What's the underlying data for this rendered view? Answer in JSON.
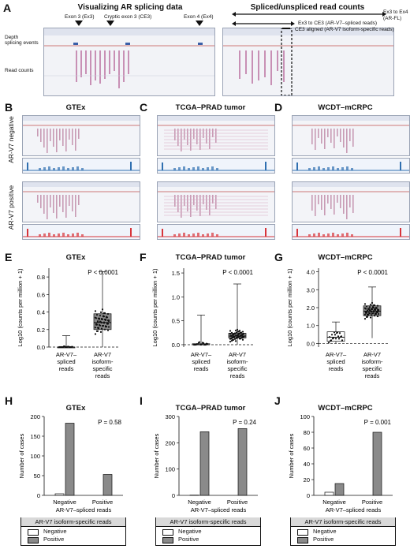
{
  "panelA": {
    "letter": "A",
    "left_title": "Visualizing AR splicing data",
    "right_title": "Spliced/unspliced read counts",
    "exon3": "Exon 3 (Ex3)",
    "cryptic": "Cryptic exon 3 (CE3)",
    "exon4": "Exon 4 (Ex4)",
    "depth_label": "Depth",
    "splicing_label": "splicing events",
    "read_counts": "Read counts",
    "ex3_ex4": "Ex3 to Ex4",
    "arfl": "(AR-FL)",
    "ex3_ce3": "Ex3 to CE3 (AR-V7–spliced reads)",
    "ce3_aligned": "CE3 aligned (AR-V7 isoform-specific reads)"
  },
  "rows": {
    "negative": "AR-V7 negative",
    "positive": "AR-V7 positive"
  },
  "panels": [
    {
      "letter": "B",
      "title": "GTEx"
    },
    {
      "letter": "C",
      "title": "TCGA–PRAD tumor"
    },
    {
      "letter": "D",
      "title": "WCDT–mCRPC"
    }
  ],
  "box_panels": [
    {
      "letter": "E",
      "title": "GTEx",
      "p": "P < 0.0001",
      "ylabel": "Log10 (counts per million + 1)",
      "ticks": [
        "0.0",
        "0.2",
        "0.4",
        "0.6",
        "0.8"
      ],
      "ylim": [
        0,
        0.9
      ],
      "groups": [
        {
          "name": "AR-V7–spliced reads",
          "median": 0.0,
          "q1": 0.0,
          "q3": 0.0,
          "min": 0.0,
          "max": 0.13
        },
        {
          "name": "AR-V7 isoform-specific reads",
          "median": 0.28,
          "q1": 0.2,
          "q3": 0.38,
          "min": 0.0,
          "max": 0.86
        }
      ]
    },
    {
      "letter": "F",
      "title": "TCGA–PRAD tumor",
      "p": "P < 0.0001",
      "ylabel": "Log10 (counts per million + 1)",
      "ticks": [
        "0.0",
        "0.5",
        "1.0",
        "1.5"
      ],
      "ylim": [
        -0.05,
        1.6
      ],
      "groups": [
        {
          "name": "AR-V7–spliced reads",
          "median": 0.0,
          "q1": 0.0,
          "q3": 0.02,
          "min": 0.0,
          "max": 0.62
        },
        {
          "name": "AR-V7 isoform-specific reads",
          "median": 0.18,
          "q1": 0.14,
          "q3": 0.24,
          "min": 0.0,
          "max": 1.27
        }
      ]
    },
    {
      "letter": "G",
      "title": "WCDT–mCRPC",
      "p": "P < 0.0001",
      "ylabel": "Log10 (counts per million + 1)",
      "ticks": [
        "0.0",
        "1.0",
        "2.0",
        "3.0",
        "4.0"
      ],
      "ylim": [
        -0.2,
        4.2
      ],
      "groups": [
        {
          "name": "AR-V7–spliced reads",
          "median": 0.35,
          "q1": 0.12,
          "q3": 0.65,
          "min": 0.0,
          "max": 1.2
        },
        {
          "name": "AR-V7 isoform-specific reads",
          "median": 1.8,
          "q1": 1.55,
          "q3": 2.1,
          "min": 0.3,
          "max": 3.15
        }
      ]
    }
  ],
  "group_labels": [
    "AR-V7–",
    "spliced",
    "reads",
    "AR-V7",
    "isoform-",
    "specific",
    "reads"
  ],
  "chart_data": [
    {
      "type": "bar",
      "letter": "H",
      "title": "GTEx",
      "p": "P = 0.58",
      "categories": [
        "Negative",
        "Positive"
      ],
      "xlabel": "AR-V7–spliced reads",
      "ylabel": "Number of cases",
      "ticks": [
        "0",
        "50",
        "100",
        "150",
        "200"
      ],
      "ylim": [
        0,
        200
      ],
      "series": [
        {
          "name": "Negative",
          "values": [
            4,
            0
          ]
        },
        {
          "name": "Positive",
          "values": [
            183,
            53
          ]
        }
      ]
    },
    {
      "type": "bar",
      "letter": "I",
      "title": "TCGA–PRAD tumor",
      "p": "P = 0.24",
      "categories": [
        "Negative",
        "Positive"
      ],
      "xlabel": "AR-V7–spliced reads",
      "ylabel": "Number of cases",
      "ticks": [
        "0",
        "100",
        "200",
        "300"
      ],
      "ylim": [
        0,
        300
      ],
      "series": [
        {
          "name": "Negative",
          "values": [
            1,
            0
          ]
        },
        {
          "name": "Positive",
          "values": [
            242,
            254
          ]
        }
      ]
    },
    {
      "type": "bar",
      "letter": "J",
      "title": "WCDT–mCRPC",
      "p": "P = 0.001",
      "categories": [
        "Negative",
        "Positive"
      ],
      "xlabel": "AR-V7–spliced reads",
      "ylabel": "Number of cases",
      "ticks": [
        "0",
        "20",
        "40",
        "60",
        "80",
        "100"
      ],
      "ylim": [
        0,
        100
      ],
      "series": [
        {
          "name": "Negative",
          "values": [
            4,
            0
          ]
        },
        {
          "name": "Positive",
          "values": [
            15,
            80
          ]
        }
      ]
    }
  ],
  "legend": {
    "title": "AR-V7 isoform-specific reads",
    "neg": "Negative",
    "pos": "Positive"
  },
  "colors": {
    "box": "#8c8c8c",
    "bar_pos": "#8a8a8a",
    "bar_neg": "#ffffff",
    "red": "#d7343a",
    "blue": "#2f6fb0",
    "pink": "#c89bb4"
  }
}
